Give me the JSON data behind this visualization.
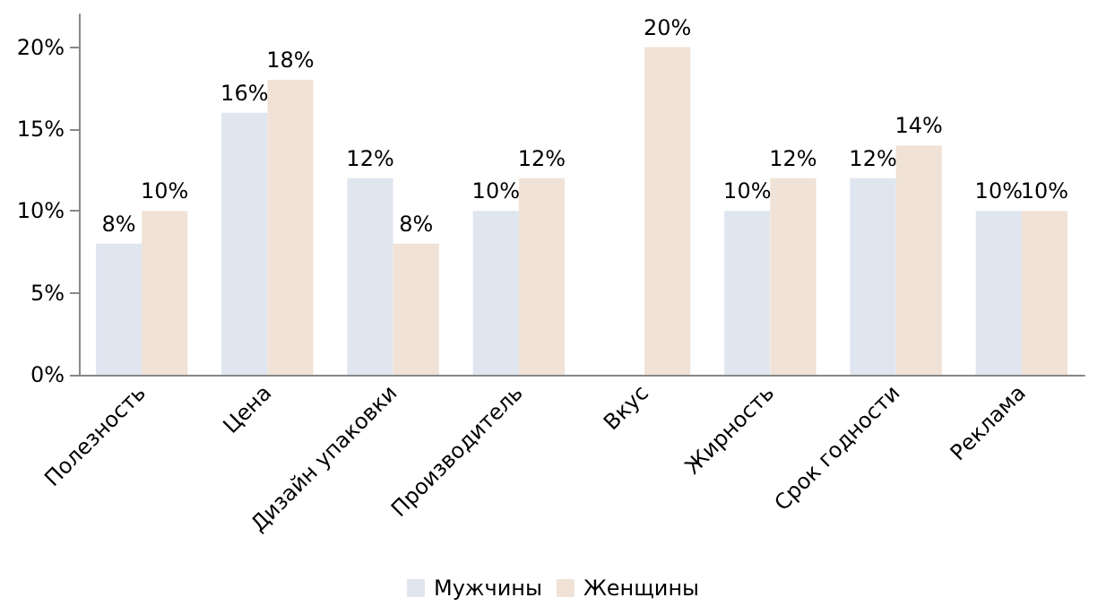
{
  "chart_data": {
    "type": "bar",
    "categories": [
      "Полезность",
      "Цена",
      "Дизайн упаковки",
      "Производитель",
      "Вкус",
      "Жирность",
      "Срок годности",
      "Реклама"
    ],
    "series": [
      {
        "name": "Мужчины",
        "color": "#dfe6f0",
        "values": [
          8,
          16,
          12,
          10,
          null,
          10,
          12,
          10
        ],
        "value_labels": [
          "8%",
          "16%",
          "12%",
          "10%",
          null,
          "10%",
          "12%",
          "10%"
        ]
      },
      {
        "name": "Женщины",
        "color": "#f0e2d6",
        "values": [
          10,
          18,
          8,
          12,
          20,
          12,
          14,
          10
        ],
        "value_labels": [
          "10%",
          "18%",
          "8%",
          "12%",
          "20%",
          "12%",
          "14%",
          "10%"
        ]
      }
    ],
    "ylim": [
      0,
      22
    ],
    "yticks": [
      {
        "value": 0,
        "label": "0%"
      },
      {
        "value": 5,
        "label": "5%"
      },
      {
        "value": 10,
        "label": "10%"
      },
      {
        "value": 15,
        "label": "15%"
      },
      {
        "value": 20,
        "label": "20%"
      }
    ],
    "grid": false,
    "legend": "bottom"
  }
}
